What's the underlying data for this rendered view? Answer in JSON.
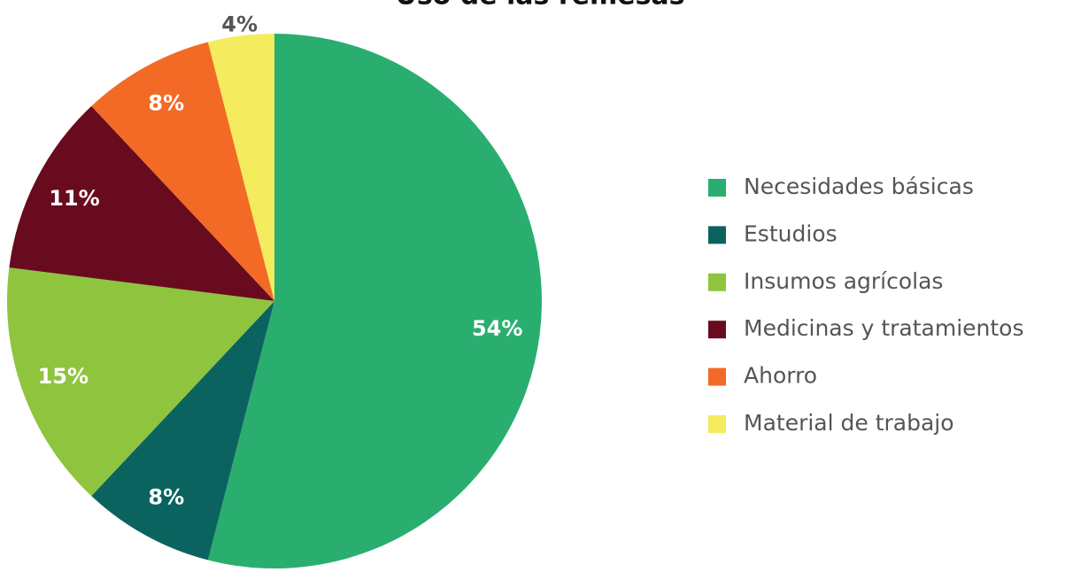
{
  "chart_data": {
    "type": "pie",
    "title": "Uso de las remesas",
    "categories": [
      "Necesidades básicas",
      "Estudios",
      "Insumos agrícolas",
      "Medicinas y tratamientos",
      "Ahorro",
      "Material de trabajo"
    ],
    "values": [
      54,
      8,
      15,
      11,
      8,
      4
    ],
    "value_labels": [
      "54%",
      "8%",
      "15%",
      "11%",
      "8%",
      "4%"
    ],
    "colors": [
      "#2aae6f",
      "#0b6360",
      "#8fc43f",
      "#690b1e",
      "#f26a26",
      "#f4eb5e"
    ],
    "legend": "right"
  }
}
